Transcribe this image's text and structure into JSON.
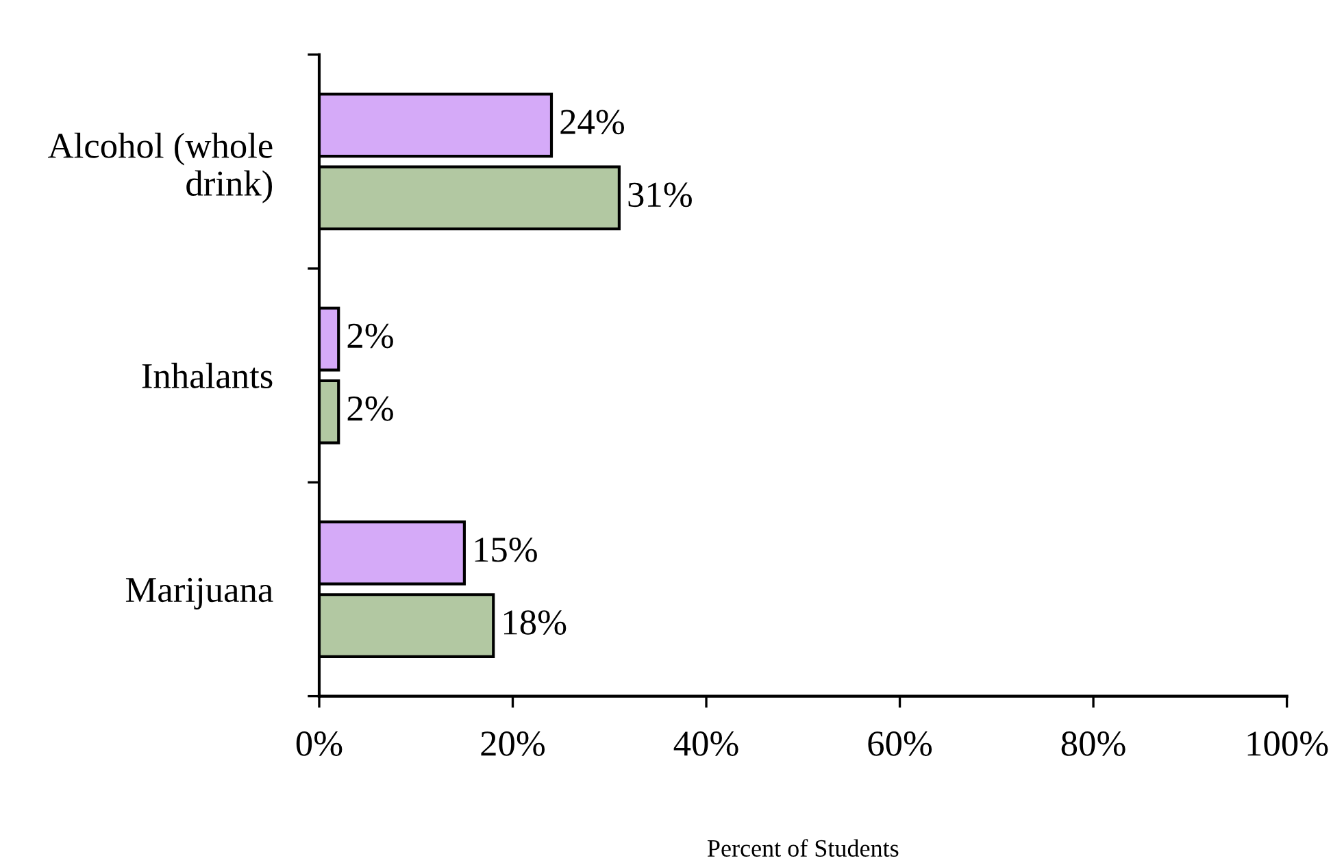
{
  "chart_data": {
    "type": "bar",
    "orientation": "horizontal",
    "xlabel": "Percent of Students",
    "categories": [
      "Alcohol (whole\ndrink)",
      "Inhalants",
      "Marijuana"
    ],
    "series": [
      {
        "color": "#d5aaf8",
        "values": [
          24,
          2,
          15
        ],
        "value_labels": [
          "24%",
          "2%",
          "15%"
        ]
      },
      {
        "color": "#b2c8a2",
        "values": [
          31,
          2,
          18
        ],
        "value_labels": [
          "31%",
          "2%",
          "18%"
        ]
      }
    ],
    "xlim": [
      0,
      100
    ],
    "xticks": [
      {
        "value": 0,
        "label": "0%"
      },
      {
        "value": 20,
        "label": "20%"
      },
      {
        "value": 40,
        "label": "40%"
      },
      {
        "value": 60,
        "label": "60%"
      },
      {
        "value": 80,
        "label": "80%"
      },
      {
        "value": 100,
        "label": "100%"
      }
    ],
    "grid": false,
    "legend": false
  }
}
